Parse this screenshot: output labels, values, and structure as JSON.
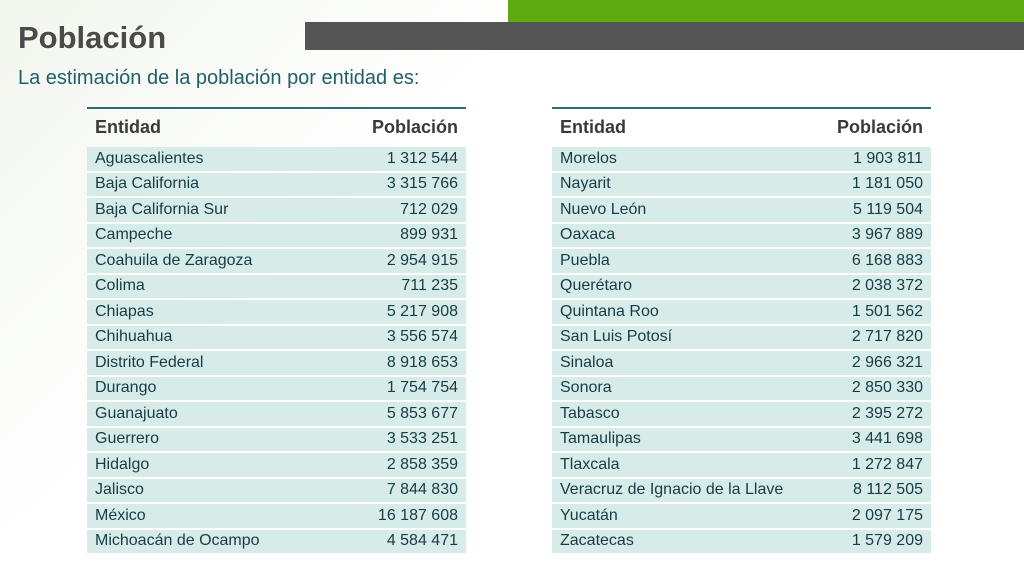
{
  "slide": {
    "title": "Población",
    "subtitle": "La estimación de la población por entidad es:"
  },
  "tables": {
    "left": {
      "header": {
        "entity": "Entidad",
        "population": "Población"
      },
      "rows": [
        {
          "entity": "Aguascalientes",
          "population": "1 312 544"
        },
        {
          "entity": "Baja California",
          "population": "3 315 766"
        },
        {
          "entity": "Baja California Sur",
          "population": "712 029"
        },
        {
          "entity": "Campeche",
          "population": "899 931"
        },
        {
          "entity": "Coahuila de Zaragoza",
          "population": "2 954 915"
        },
        {
          "entity": "Colima",
          "population": "711 235"
        },
        {
          "entity": "Chiapas",
          "population": "5 217 908"
        },
        {
          "entity": "Chihuahua",
          "population": "3 556 574"
        },
        {
          "entity": "Distrito Federal",
          "population": "8 918 653"
        },
        {
          "entity": "Durango",
          "population": "1 754 754"
        },
        {
          "entity": "Guanajuato",
          "population": "5 853 677"
        },
        {
          "entity": "Guerrero",
          "population": "3 533 251"
        },
        {
          "entity": "Hidalgo",
          "population": "2 858 359"
        },
        {
          "entity": "Jalisco",
          "population": "7 844 830"
        },
        {
          "entity": "México",
          "population": "16 187 608"
        },
        {
          "entity": "Michoacán de Ocampo",
          "population": "4 584 471"
        }
      ]
    },
    "right": {
      "header": {
        "entity": "Entidad",
        "population": "Población"
      },
      "rows": [
        {
          "entity": "Morelos",
          "population": "1 903 811"
        },
        {
          "entity": "Nayarit",
          "population": "1 181 050"
        },
        {
          "entity": "Nuevo León",
          "population": "5 119 504"
        },
        {
          "entity": "Oaxaca",
          "population": "3 967 889"
        },
        {
          "entity": "Puebla",
          "population": "6 168 883"
        },
        {
          "entity": "Querétaro",
          "population": "2 038 372"
        },
        {
          "entity": "Quintana Roo",
          "population": "1 501 562"
        },
        {
          "entity": "San Luis Potosí",
          "population": "2 717 820"
        },
        {
          "entity": "Sinaloa",
          "population": "2 966 321"
        },
        {
          "entity": "Sonora",
          "population": "2 850 330"
        },
        {
          "entity": "Tabasco",
          "population": "2 395 272"
        },
        {
          "entity": "Tamaulipas",
          "population": "3 441 698"
        },
        {
          "entity": "Tlaxcala",
          "population": "1 272 847"
        },
        {
          "entity": "Veracruz de Ignacio de la Llave",
          "population": "8 112 505"
        },
        {
          "entity": "Yucatán",
          "population": "2 097 175"
        },
        {
          "entity": "Zacatecas",
          "population": "1 579 209"
        }
      ]
    }
  },
  "colors": {
    "accent_green": "#5faa12",
    "header_bar_gray": "#555555",
    "row_fill": "#d7ebe8",
    "text_teal": "#1f5f6a"
  }
}
